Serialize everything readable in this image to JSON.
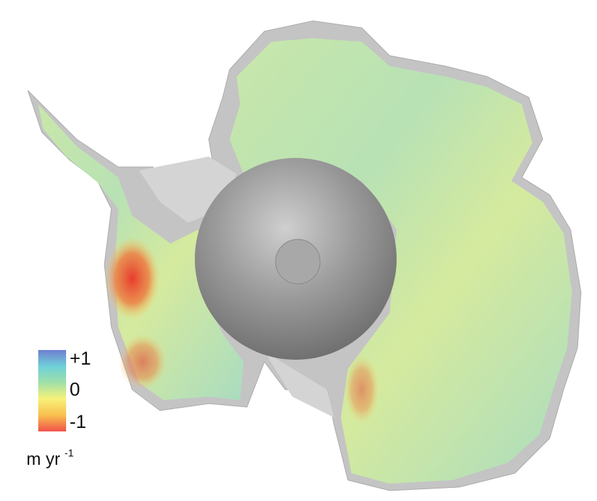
{
  "legend": {
    "range": [
      -1,
      1
    ],
    "ticks": [
      {
        "value": 1,
        "label": "+1"
      },
      {
        "value": 0,
        "label": "0"
      },
      {
        "value": -1,
        "label": "-1"
      }
    ],
    "colors": [
      "#f0524a",
      "#f9c04e",
      "#f7f27a",
      "#9fe0a8",
      "#6fd0d8",
      "#6f7fd0"
    ],
    "unit": "m yr",
    "unit_exponent": "-1"
  }
}
